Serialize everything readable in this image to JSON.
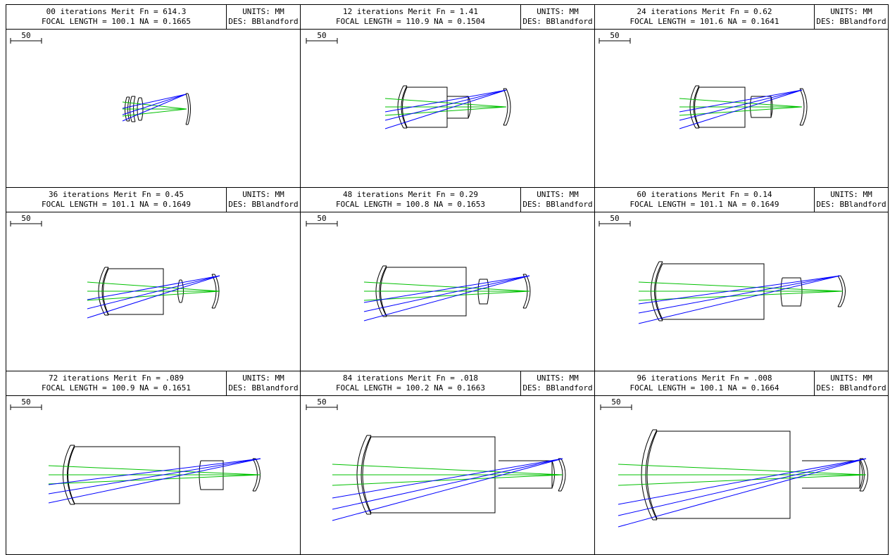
{
  "panels": [
    {
      "line1": "00 iterations Merit Fn = 614.3",
      "line2": "FOCAL LENGTH = 100.1  NA = 0.1665",
      "units": "UNITS: MM",
      "designer": "DES: BBlandford",
      "scale_label": "50"
    },
    {
      "line1": "12 iterations Merit Fn = 1.41",
      "line2": "FOCAL LENGTH = 110.9  NA = 0.1504",
      "units": "UNITS: MM",
      "designer": "DES: BBlandford",
      "scale_label": "50"
    },
    {
      "line1": "24 iterations Merit Fn = 0.62",
      "line2": "FOCAL LENGTH = 101.6  NA = 0.1641",
      "units": "UNITS: MM",
      "designer": "DES: BBlandford",
      "scale_label": "50"
    },
    {
      "line1": "36 iterations Merit Fn = 0.45",
      "line2": "FOCAL LENGTH = 101.1  NA = 0.1649",
      "units": "UNITS: MM",
      "designer": "DES: BBlandford",
      "scale_label": "50"
    },
    {
      "line1": "48 iterations Merit Fn = 0.29",
      "line2": "FOCAL LENGTH = 100.8  NA = 0.1653",
      "units": "UNITS: MM",
      "designer": "DES: BBlandford",
      "scale_label": "50"
    },
    {
      "line1": "60 iterations Merit Fn = 0.14",
      "line2": "FOCAL LENGTH = 101.1  NA = 0.1649",
      "units": "UNITS: MM",
      "designer": "DES: BBlandford",
      "scale_label": "50"
    },
    {
      "line1": "72 iterations Merit Fn = .089",
      "line2": "FOCAL LENGTH = 100.9  NA = 0.1651",
      "units": "UNITS: MM",
      "designer": "DES: BBlandford",
      "scale_label": "50"
    },
    {
      "line1": "84 iterations Merit Fn = .018",
      "line2": "FOCAL LENGTH = 100.2  NA = 0.1663",
      "units": "UNITS: MM",
      "designer": "DES: BBlandford",
      "scale_label": "50"
    },
    {
      "line1": "96 iterations Merit Fn = .008",
      "line2": "FOCAL LENGTH = 100.1  NA = 0.1664",
      "units": "UNITS: MM",
      "designer": "DES: BBlandford",
      "scale_label": "50"
    }
  ],
  "colors": {
    "frame": "#000000",
    "lens": "#000000",
    "axial_rays": "#00c000",
    "field_rays": "#0000ff"
  }
}
